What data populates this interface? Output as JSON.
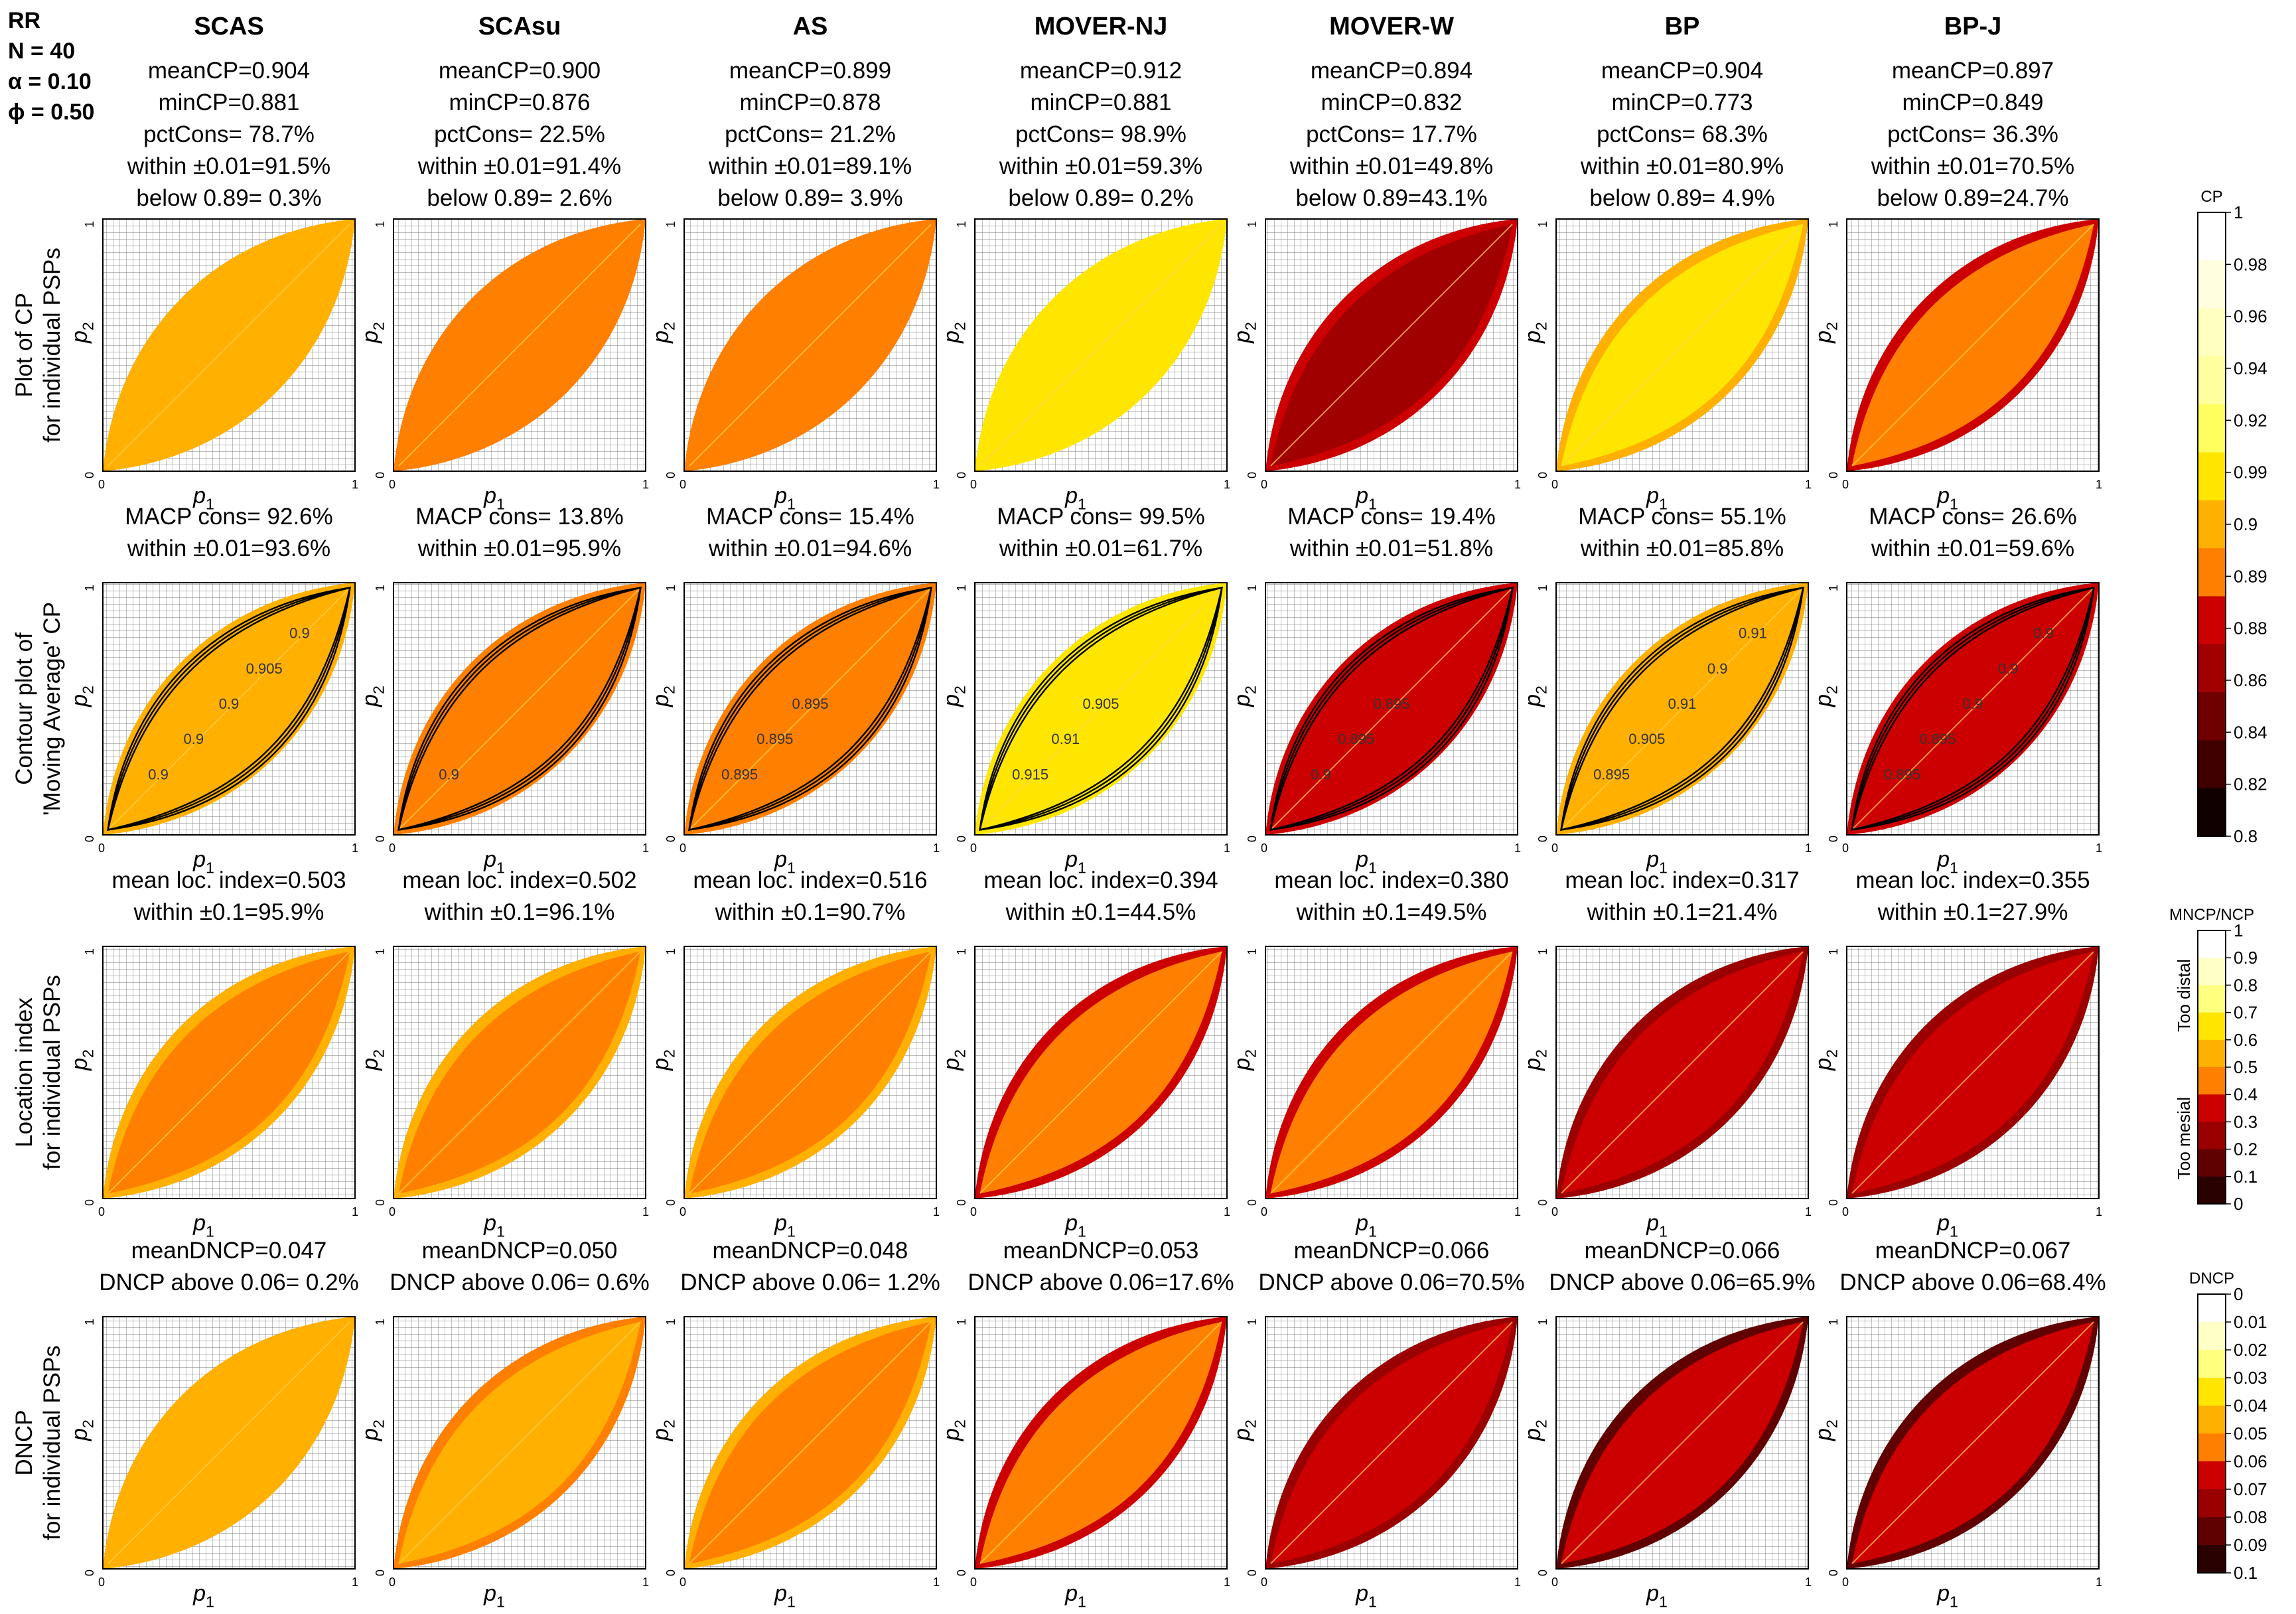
{
  "params": {
    "lines": [
      "RR",
      "N = 40",
      "α = 0.10",
      "ϕ = 0.50"
    ]
  },
  "methods": [
    "SCAS",
    "SCAsu",
    "AS",
    "MOVER-NJ",
    "MOVER-W",
    "BP",
    "BP-J"
  ],
  "row_labels": [
    [
      "Plot of CP",
      "for individual PSPs"
    ],
    [
      "Contour plot of",
      "'Moving Average' CP"
    ],
    [
      "Location index",
      "for individual PSPs"
    ],
    [
      "DNCP",
      "for individual PSPs"
    ]
  ],
  "panel_text": {
    "row1": [
      [
        "meanCP=0.904",
        "minCP=0.881",
        "pctCons= 78.7%",
        "within ±0.01=91.5%",
        "below 0.89= 0.3%"
      ],
      [
        "meanCP=0.900",
        "minCP=0.876",
        "pctCons= 22.5%",
        "within ±0.01=91.4%",
        "below 0.89= 2.6%"
      ],
      [
        "meanCP=0.899",
        "minCP=0.878",
        "pctCons= 21.2%",
        "within ±0.01=89.1%",
        "below 0.89= 3.9%"
      ],
      [
        "meanCP=0.912",
        "minCP=0.881",
        "pctCons= 98.9%",
        "within ±0.01=59.3%",
        "below 0.89= 0.2%"
      ],
      [
        "meanCP=0.894",
        "minCP=0.832",
        "pctCons= 17.7%",
        "within ±0.01=49.8%",
        "below 0.89=43.1%"
      ],
      [
        "meanCP=0.904",
        "minCP=0.773",
        "pctCons= 68.3%",
        "within ±0.01=80.9%",
        "below 0.89= 4.9%"
      ],
      [
        "meanCP=0.897",
        "minCP=0.849",
        "pctCons= 36.3%",
        "within ±0.01=70.5%",
        "below 0.89=24.7%"
      ]
    ],
    "row2": [
      [
        "MACP cons= 92.6%",
        "within ±0.01=93.6%"
      ],
      [
        "MACP cons= 13.8%",
        "within ±0.01=95.9%"
      ],
      [
        "MACP cons= 15.4%",
        "within ±0.01=94.6%"
      ],
      [
        "MACP cons= 99.5%",
        "within ±0.01=61.7%"
      ],
      [
        "MACP cons= 19.4%",
        "within ±0.01=51.8%"
      ],
      [
        "MACP cons= 55.1%",
        "within ±0.01=85.8%"
      ],
      [
        "MACP cons= 26.6%",
        "within ±0.01=59.6%"
      ]
    ],
    "row3": [
      [
        "mean loc. index=0.503",
        "within ±0.1=95.9%"
      ],
      [
        "mean loc. index=0.502",
        "within ±0.1=96.1%"
      ],
      [
        "mean loc. index=0.516",
        "within ±0.1=90.7%"
      ],
      [
        "mean loc. index=0.394",
        "within ±0.1=44.5%"
      ],
      [
        "mean loc. index=0.380",
        "within ±0.1=49.5%"
      ],
      [
        "mean loc. index=0.317",
        "within ±0.1=21.4%"
      ],
      [
        "mean loc. index=0.355",
        "within ±0.1=27.9%"
      ]
    ],
    "row4": [
      [
        "meanDNCP=0.047",
        "DNCP above 0.06= 0.2%"
      ],
      [
        "meanDNCP=0.050",
        "DNCP above 0.06= 0.6%"
      ],
      [
        "meanDNCP=0.048",
        "DNCP above 0.06= 1.2%"
      ],
      [
        "meanDNCP=0.053",
        "DNCP above 0.06=17.6%"
      ],
      [
        "meanDNCP=0.066",
        "DNCP above 0.06=70.5%"
      ],
      [
        "meanDNCP=0.066",
        "DNCP above 0.06=65.9%"
      ],
      [
        "meanDNCP=0.067",
        "DNCP above 0.06=68.4%"
      ]
    ]
  },
  "axes": {
    "xlabel_base": "p",
    "xlabel_sub": "1",
    "ylabel_base": "p",
    "ylabel_sub": "2",
    "ticks": [
      "0",
      "1"
    ]
  },
  "colorbars": {
    "cp": {
      "title": "CP",
      "ticks": [
        "1",
        "0.98",
        "0.96",
        "0.94",
        "0.92",
        "0.99",
        "0.9",
        "0.89",
        "0.88",
        "0.86",
        "0.84",
        "0.82",
        "0.8"
      ]
    },
    "loc": {
      "title": "MNCP/NCP",
      "ticks": [
        "1",
        "0.9",
        "0.8",
        "0.7",
        "0.6",
        "0.5",
        "0.4",
        "0.3",
        "0.2",
        "0.1",
        "0"
      ],
      "side_labels": [
        "Too distal",
        "Too mesial"
      ]
    },
    "dncp": {
      "title": "DNCP",
      "ticks": [
        "0",
        "0.01",
        "0.02",
        "0.03",
        "0.04",
        "0.05",
        "0.06",
        "0.07",
        "0.08",
        "0.09",
        "0.1"
      ]
    }
  },
  "contour_labels": [
    [
      "0.9",
      "0.9",
      "0.9",
      "0.905",
      "0.9"
    ],
    [
      "0.9"
    ],
    [
      "0.895",
      "0.895",
      "0.895"
    ],
    [
      "0.915",
      "0.91",
      "0.905"
    ],
    [
      "0.9",
      "0.895",
      "0.895"
    ],
    [
      "0.895",
      "0.905",
      "0.91",
      "0.9",
      "0.91"
    ],
    [
      "0.895",
      "0.895",
      "0.9",
      "0.9",
      "0.9"
    ]
  ],
  "colors": {
    "cp_scale": [
      "#ffffff",
      "#ffffdf",
      "#ffffc0",
      "#ffff9f",
      "#ffff60",
      "#ffe600",
      "#ffb000",
      "#ff7f00",
      "#cc0000",
      "#a00000",
      "#700000",
      "#400000",
      "#100000"
    ],
    "loc_scale": [
      "#ffffff",
      "#ffffc8",
      "#ffff80",
      "#ffe600",
      "#ffb000",
      "#ff7f00",
      "#cc0000",
      "#9a0000",
      "#600000",
      "#2a0000"
    ],
    "dncp_scale": [
      "#ffffff",
      "#ffffc8",
      "#ffff80",
      "#ffe600",
      "#ffb000",
      "#ff7f00",
      "#cc0000",
      "#9a0000",
      "#600000",
      "#2a0000"
    ],
    "panel_fill": [
      "#ffb000",
      "#ff7f00",
      "#ff7f00",
      "#ffe600",
      "#cc0000",
      "#ffb000",
      "#cc0000"
    ]
  },
  "chart_data": {
    "type": "heatmap",
    "grid": "on",
    "xlim": [
      0,
      1
    ],
    "ylim": [
      0,
      1
    ],
    "panels": [
      {
        "method": "SCAS",
        "meanCP": 0.904,
        "minCP": 0.881,
        "pctCons": 78.7,
        "within_cp": 91.5,
        "below_089": 0.3,
        "macp_cons": 92.6,
        "macp_within": 93.6,
        "mean_loc": 0.503,
        "loc_within": 95.9,
        "meanDNCP": 0.047,
        "dncp_above": 0.2
      },
      {
        "method": "SCAsu",
        "meanCP": 0.9,
        "minCP": 0.876,
        "pctCons": 22.5,
        "within_cp": 91.4,
        "below_089": 2.6,
        "macp_cons": 13.8,
        "macp_within": 95.9,
        "mean_loc": 0.502,
        "loc_within": 96.1,
        "meanDNCP": 0.05,
        "dncp_above": 0.6
      },
      {
        "method": "AS",
        "meanCP": 0.899,
        "minCP": 0.878,
        "pctCons": 21.2,
        "within_cp": 89.1,
        "below_089": 3.9,
        "macp_cons": 15.4,
        "macp_within": 94.6,
        "mean_loc": 0.516,
        "loc_within": 90.7,
        "meanDNCP": 0.048,
        "dncp_above": 1.2
      },
      {
        "method": "MOVER-NJ",
        "meanCP": 0.912,
        "minCP": 0.881,
        "pctCons": 98.9,
        "within_cp": 59.3,
        "below_089": 0.2,
        "macp_cons": 99.5,
        "macp_within": 61.7,
        "mean_loc": 0.394,
        "loc_within": 44.5,
        "meanDNCP": 0.053,
        "dncp_above": 17.6
      },
      {
        "method": "MOVER-W",
        "meanCP": 0.894,
        "minCP": 0.832,
        "pctCons": 17.7,
        "within_cp": 49.8,
        "below_089": 43.1,
        "macp_cons": 19.4,
        "macp_within": 51.8,
        "mean_loc": 0.38,
        "loc_within": 49.5,
        "meanDNCP": 0.066,
        "dncp_above": 70.5
      },
      {
        "method": "BP",
        "meanCP": 0.904,
        "minCP": 0.773,
        "pctCons": 68.3,
        "within_cp": 80.9,
        "below_089": 4.9,
        "macp_cons": 55.1,
        "macp_within": 85.8,
        "mean_loc": 0.317,
        "loc_within": 21.4,
        "meanDNCP": 0.066,
        "dncp_above": 65.9
      },
      {
        "method": "BP-J",
        "meanCP": 0.897,
        "minCP": 0.849,
        "pctCons": 36.3,
        "within_cp": 70.5,
        "below_089": 24.7,
        "macp_cons": 26.6,
        "macp_within": 59.6,
        "mean_loc": 0.355,
        "loc_within": 27.9,
        "meanDNCP": 0.067,
        "dncp_above": 68.4
      }
    ]
  }
}
